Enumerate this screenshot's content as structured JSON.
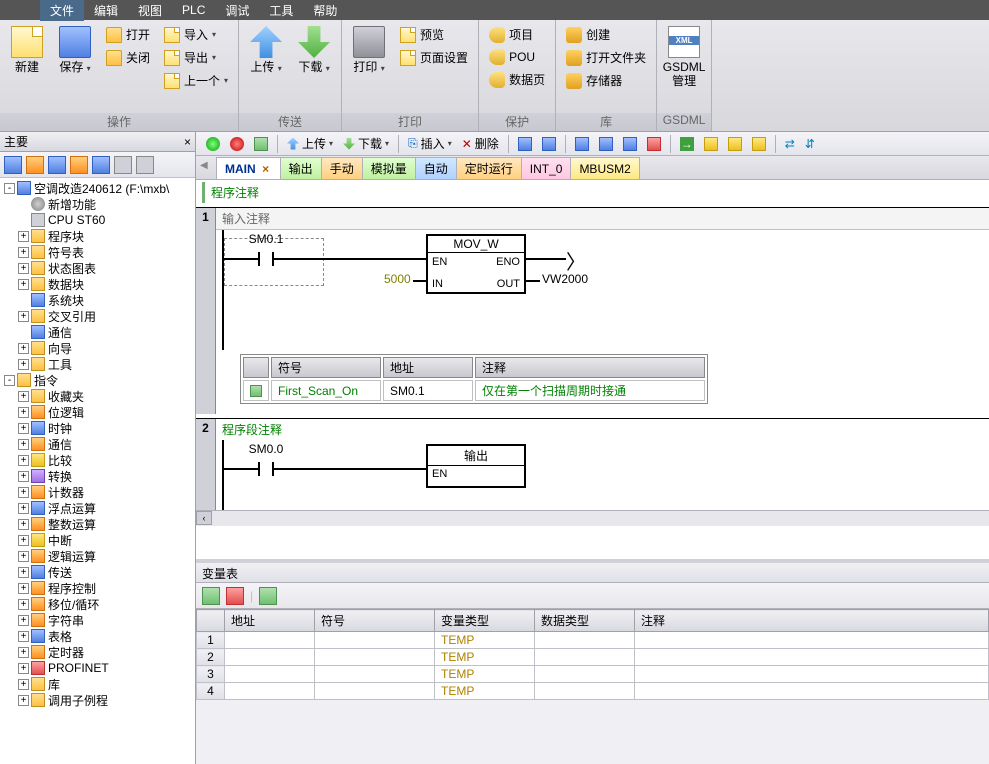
{
  "menubar": {
    "items": [
      "文件",
      "编辑",
      "视图",
      "PLC",
      "调试",
      "工具",
      "帮助"
    ],
    "active_index": 0
  },
  "ribbon": {
    "groups": [
      {
        "label": "操作",
        "big": [
          {
            "name": "new",
            "label": "新建",
            "icon": "ic-file"
          },
          {
            "name": "save",
            "label": "保存",
            "icon": "ic-disk",
            "dd": true
          }
        ],
        "col": [
          {
            "name": "open",
            "label": "打开",
            "icon": "ic-folder"
          },
          {
            "name": "close",
            "label": "关闭",
            "icon": "ic-folder"
          }
        ],
        "col2": [
          {
            "name": "import",
            "label": "导入",
            "icon": "ic-file",
            "dd": true
          },
          {
            "name": "export",
            "label": "导出",
            "icon": "ic-file",
            "dd": true
          },
          {
            "name": "prev",
            "label": "上一个",
            "icon": "ic-file",
            "dd": true
          }
        ]
      },
      {
        "label": "传送",
        "big": [
          {
            "name": "upload",
            "label": "上传",
            "icon": "ic-arrow-up",
            "dd": true
          },
          {
            "name": "download",
            "label": "下载",
            "icon": "ic-arrow-down",
            "dd": true
          }
        ]
      },
      {
        "label": "打印",
        "big": [
          {
            "name": "print",
            "label": "打印",
            "icon": "ic-print",
            "dd": true
          }
        ],
        "col": [
          {
            "name": "preview",
            "label": "预览",
            "icon": "ic-file"
          },
          {
            "name": "pagesetup",
            "label": "页面设置",
            "icon": "ic-file"
          }
        ]
      },
      {
        "label": "保护",
        "col": [
          {
            "name": "project",
            "label": "项目",
            "icon": "ic-key"
          },
          {
            "name": "pou",
            "label": "POU",
            "icon": "ic-key"
          },
          {
            "name": "datapage",
            "label": "数据页",
            "icon": "ic-key"
          }
        ]
      },
      {
        "label": "库",
        "col": [
          {
            "name": "create",
            "label": "创建",
            "icon": "ic-db"
          },
          {
            "name": "openfolder",
            "label": "打开文件夹",
            "icon": "ic-db"
          },
          {
            "name": "storage",
            "label": "存储器",
            "icon": "ic-db"
          }
        ]
      },
      {
        "label": "GSDML",
        "big": [
          {
            "name": "gsdml",
            "label": "GSDML\n管理",
            "icon": "ic-xml"
          }
        ]
      }
    ]
  },
  "leftpanel": {
    "title": "主要",
    "project_name": "空调改造240612  (F:\\mxb\\",
    "tree": [
      {
        "d": 1,
        "exp": "",
        "icon": "ti-gear",
        "label": "新增功能"
      },
      {
        "d": 1,
        "exp": "",
        "icon": "ti-cpu",
        "label": "CPU ST60"
      },
      {
        "d": 1,
        "exp": "+",
        "icon": "ti-folder",
        "label": "程序块"
      },
      {
        "d": 1,
        "exp": "+",
        "icon": "ti-folder",
        "label": "符号表"
      },
      {
        "d": 1,
        "exp": "+",
        "icon": "ti-folder",
        "label": "状态图表"
      },
      {
        "d": 1,
        "exp": "+",
        "icon": "ti-folder",
        "label": "数据块"
      },
      {
        "d": 1,
        "exp": "",
        "icon": "ti-blue",
        "label": "系统块"
      },
      {
        "d": 1,
        "exp": "+",
        "icon": "ti-folder",
        "label": "交叉引用"
      },
      {
        "d": 1,
        "exp": "",
        "icon": "ti-blue",
        "label": "通信"
      },
      {
        "d": 1,
        "exp": "+",
        "icon": "ti-folder",
        "label": "向导"
      },
      {
        "d": 1,
        "exp": "+",
        "icon": "ti-folder",
        "label": "工具"
      }
    ],
    "instructions_root": "指令",
    "instructions": [
      {
        "icon": "ti-folder",
        "label": "收藏夹"
      },
      {
        "icon": "ti-orange",
        "label": "位逻辑"
      },
      {
        "icon": "ti-blue",
        "label": "时钟"
      },
      {
        "icon": "ti-orange",
        "label": "通信"
      },
      {
        "icon": "ti-yellow",
        "label": "比较"
      },
      {
        "icon": "ti-purple",
        "label": "转换"
      },
      {
        "icon": "ti-orange",
        "label": "计数器"
      },
      {
        "icon": "ti-blue",
        "label": "浮点运算"
      },
      {
        "icon": "ti-orange",
        "label": "整数运算"
      },
      {
        "icon": "ti-yellow",
        "label": "中断"
      },
      {
        "icon": "ti-orange",
        "label": "逻辑运算"
      },
      {
        "icon": "ti-blue",
        "label": "传送"
      },
      {
        "icon": "ti-orange",
        "label": "程序控制"
      },
      {
        "icon": "ti-orange",
        "label": "移位/循环"
      },
      {
        "icon": "ti-orange",
        "label": "字符串"
      },
      {
        "icon": "ti-blue",
        "label": "表格"
      },
      {
        "icon": "ti-orange",
        "label": "定时器"
      },
      {
        "icon": "ti-red",
        "label": "PROFINET"
      },
      {
        "icon": "ti-folder",
        "label": "库"
      },
      {
        "icon": "ti-folder",
        "label": "调用子例程"
      }
    ]
  },
  "toolbar": {
    "upload": "上传",
    "download": "下载",
    "insert": "插入",
    "delete": "删除"
  },
  "tabs": [
    {
      "label": "MAIN",
      "cls": "active",
      "close": true
    },
    {
      "label": "输出",
      "cls": "t-green"
    },
    {
      "label": "手动",
      "cls": "t-orange"
    },
    {
      "label": "模拟量",
      "cls": "t-green"
    },
    {
      "label": "自动",
      "cls": "t-blue"
    },
    {
      "label": "定时运行",
      "cls": "t-orange"
    },
    {
      "label": "INT_0",
      "cls": "t-pink"
    },
    {
      "label": "MBUSM2",
      "cls": "t-yellow"
    }
  ],
  "editor": {
    "program_comment": "程序注释",
    "network1": {
      "num": "1",
      "comment": "输入注释",
      "contact": "SM0.1",
      "box_title": "MOV_W",
      "en": "EN",
      "eno": "ENO",
      "in": "IN",
      "out": "OUT",
      "in_val": "5000",
      "out_val": "VW2000"
    },
    "symtable": {
      "headers": [
        "符号",
        "地址",
        "注释"
      ],
      "row": [
        "First_Scan_On",
        "SM0.1",
        "仅在第一个扫描周期时接通"
      ]
    },
    "network2": {
      "num": "2",
      "comment": "程序段注释",
      "contact": "SM0.0",
      "box_title": "输出",
      "en": "EN"
    }
  },
  "vartable": {
    "title": "变量表",
    "headers": [
      "",
      "地址",
      "符号",
      "变量类型",
      "数据类型",
      "注释"
    ],
    "rows": [
      {
        "n": "1",
        "type": "TEMP"
      },
      {
        "n": "2",
        "type": "TEMP"
      },
      {
        "n": "3",
        "type": "TEMP"
      },
      {
        "n": "4",
        "type": "TEMP"
      }
    ]
  }
}
